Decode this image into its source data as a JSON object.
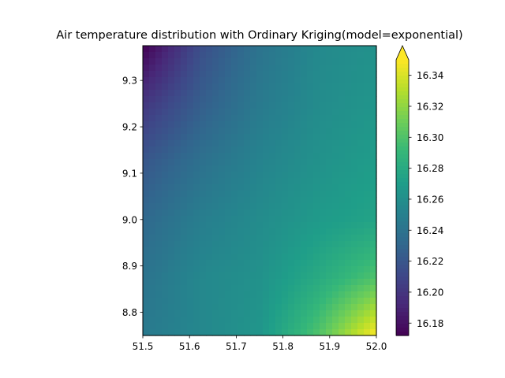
{
  "chart_data": {
    "type": "heatmap",
    "title": "Air temperature distribution with Ordinary Kriging(model=exponential)",
    "xlabel": "",
    "ylabel": "",
    "xlim": [
      51.5,
      52.0
    ],
    "ylim": [
      8.75,
      9.375
    ],
    "x_ticks": [
      "51.5",
      "51.6",
      "51.7",
      "51.8",
      "51.9",
      "52.0"
    ],
    "x_tick_values": [
      51.5,
      51.6,
      51.7,
      51.8,
      51.9,
      52.0
    ],
    "y_ticks": [
      "8.8",
      "8.9",
      "9.0",
      "9.1",
      "9.2",
      "9.3"
    ],
    "y_tick_values": [
      8.8,
      8.9,
      9.0,
      9.1,
      9.2,
      9.3
    ],
    "colormap": "viridis",
    "colorbar": {
      "vmin": 16.172,
      "vmax": 16.35,
      "extend": "max",
      "ticks": [
        "16.18",
        "16.20",
        "16.22",
        "16.24",
        "16.26",
        "16.28",
        "16.30",
        "16.32",
        "16.34"
      ],
      "tick_values": [
        16.18,
        16.2,
        16.22,
        16.24,
        16.26,
        16.28,
        16.3,
        16.32,
        16.34
      ]
    },
    "grid_x": [
      51.5,
      51.625,
      51.75,
      51.875,
      52.0
    ],
    "grid_y": [
      8.75,
      8.875,
      9.0,
      9.125,
      9.25,
      9.375
    ],
    "values": [
      [
        16.245,
        16.255,
        16.265,
        16.3,
        16.35
      ],
      [
        16.24,
        16.255,
        16.262,
        16.28,
        16.3
      ],
      [
        16.232,
        16.248,
        16.258,
        16.268,
        16.275
      ],
      [
        16.22,
        16.238,
        16.252,
        16.262,
        16.27
      ],
      [
        16.2,
        16.225,
        16.245,
        16.258,
        16.265
      ],
      [
        16.172,
        16.215,
        16.24,
        16.256,
        16.262
      ]
    ],
    "grid": false,
    "legend": "none"
  },
  "colors": {
    "viridis": [
      "#440154",
      "#482878",
      "#3e4989",
      "#31688e",
      "#26828e",
      "#1f9e89",
      "#35b779",
      "#6ece58",
      "#b5de2b",
      "#fde725"
    ]
  }
}
